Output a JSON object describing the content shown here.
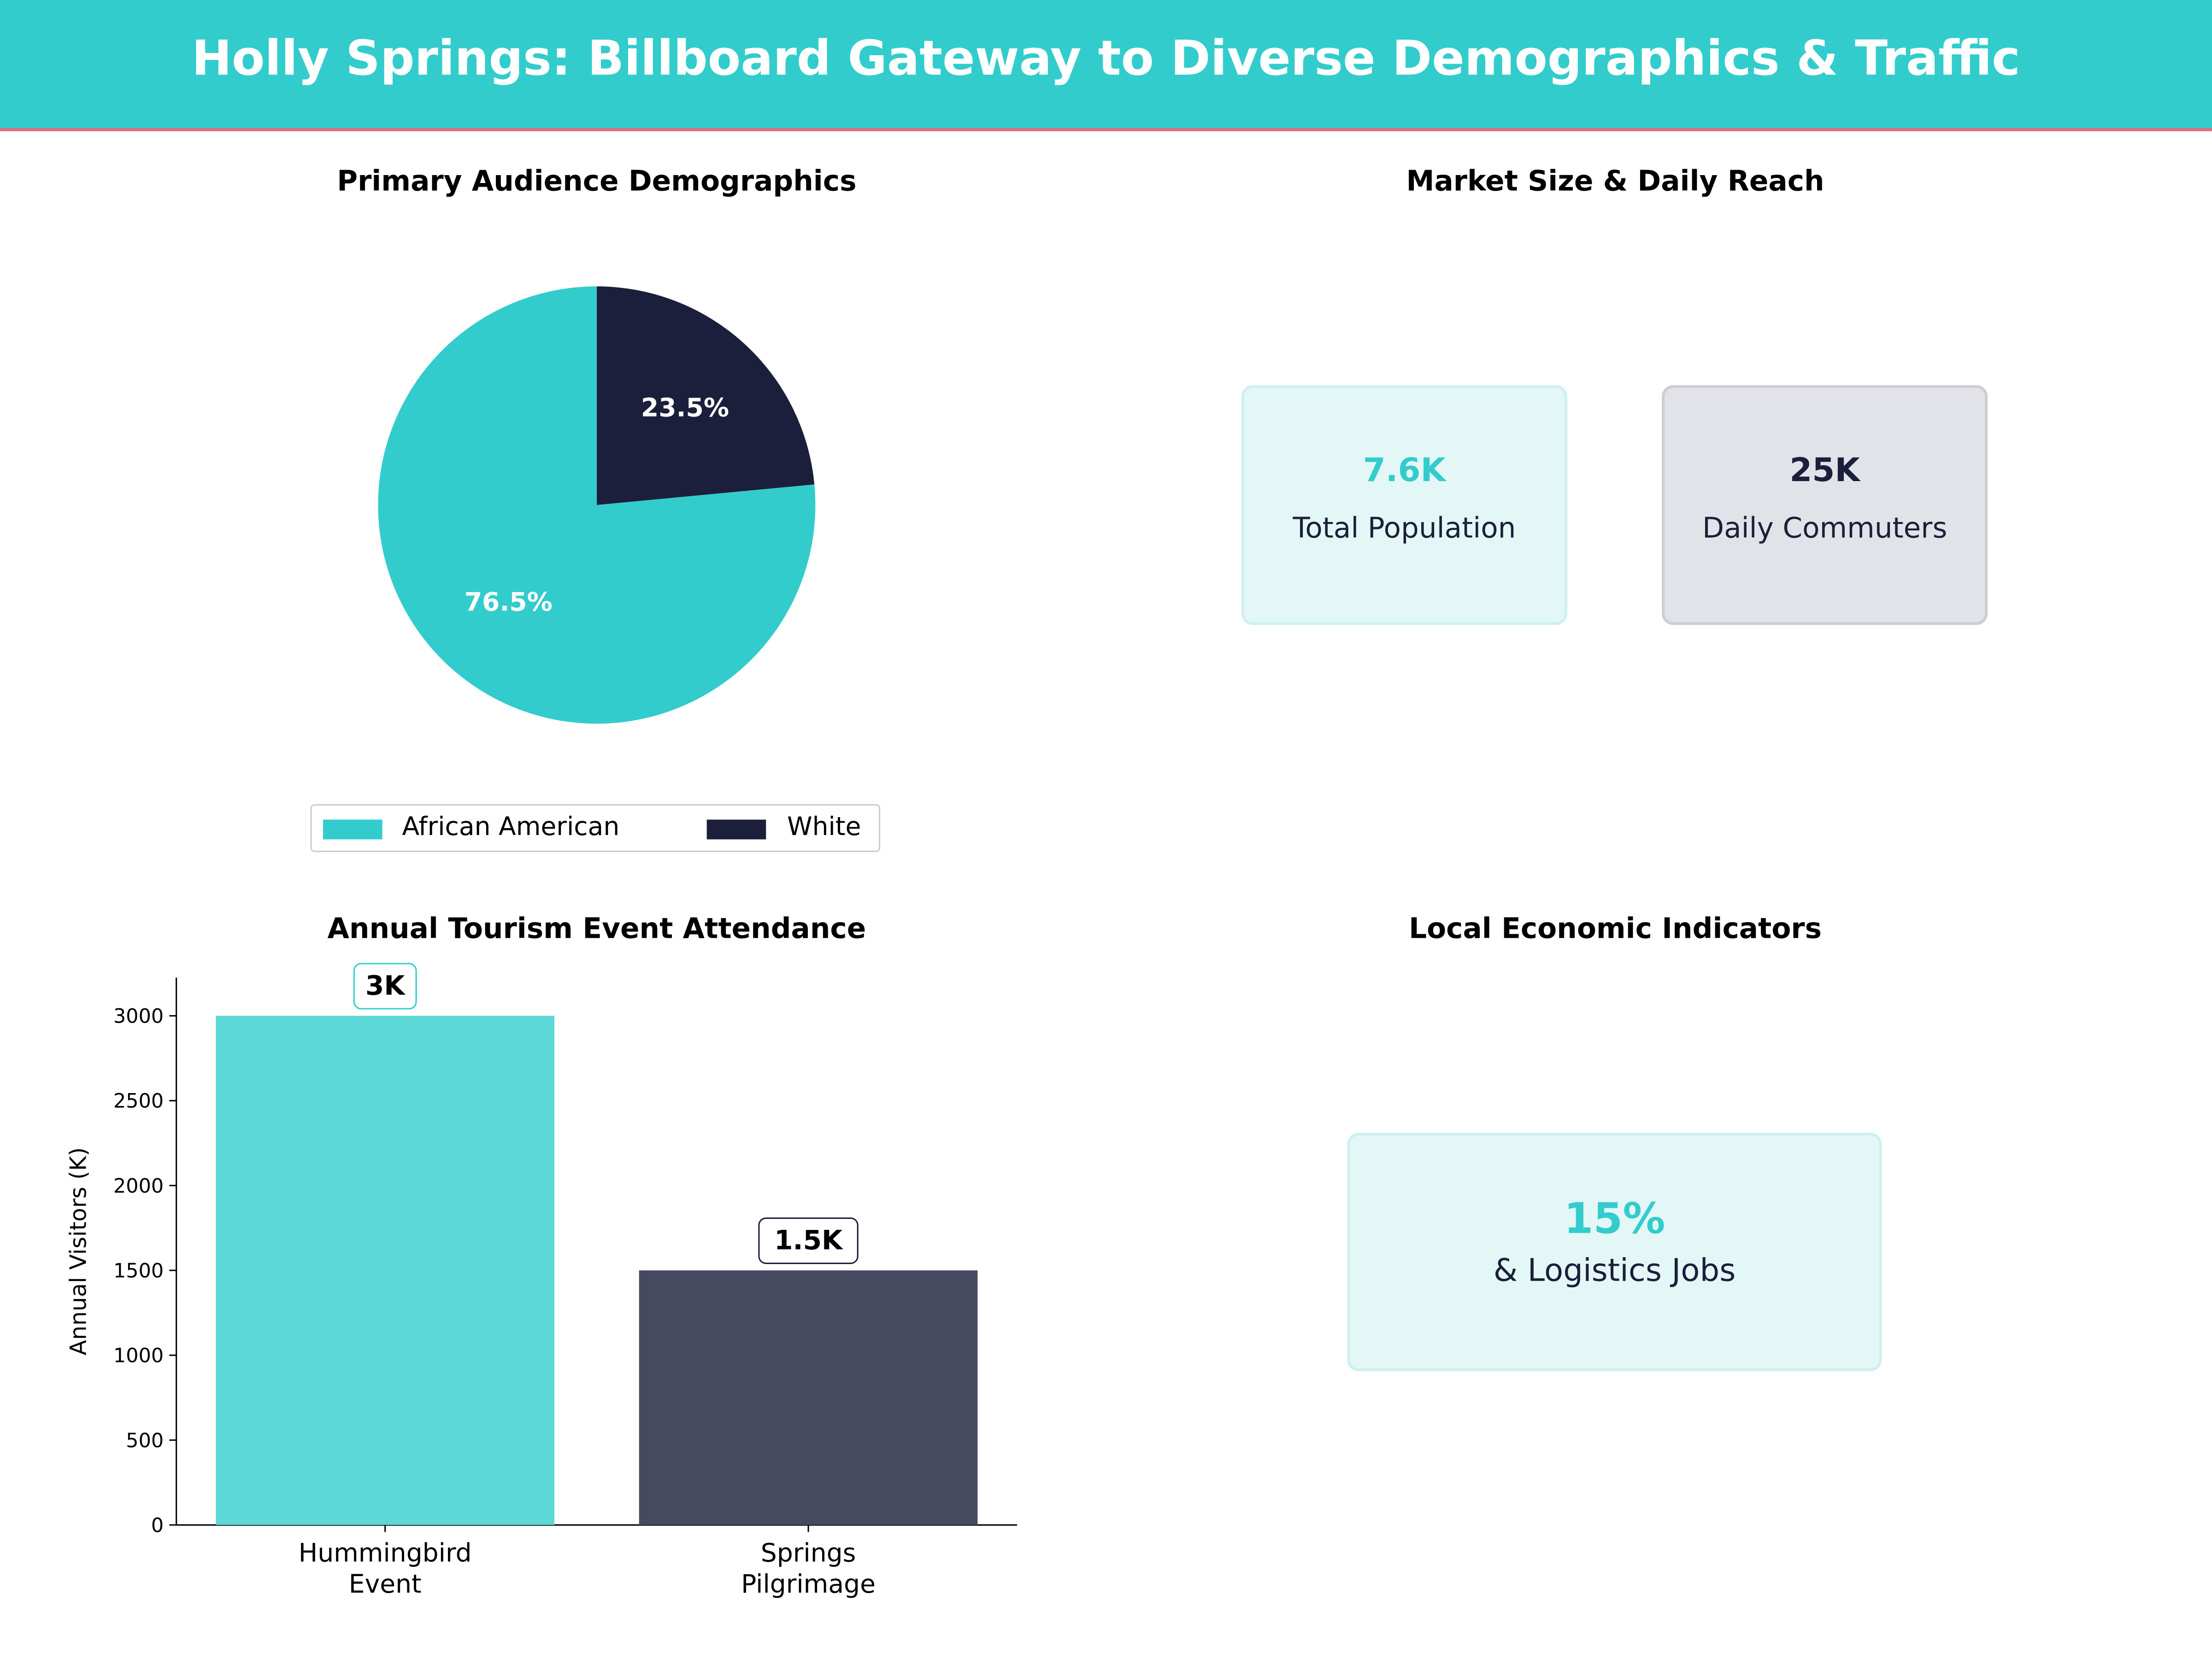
{
  "title": "Holly Springs: Billboard Gateway to Diverse Demographics & Traffic",
  "colors": {
    "accent": "#33CCCC",
    "dark": "#1B1F3B",
    "stripe": "#F06478",
    "bar1": "#5CD8D6",
    "bar2": "#454A60"
  },
  "market": {
    "title": "Market Size & Daily Reach",
    "cards": [
      {
        "value": "7.6K",
        "label": "Total Population"
      },
      {
        "value": "25K",
        "label": "Daily Commuters"
      }
    ]
  },
  "economic": {
    "title": "Local Economic Indicators",
    "card": {
      "value": "15%",
      "label": "& Logistics Jobs"
    }
  },
  "chart_data": [
    {
      "type": "pie",
      "title": "Primary Audience Demographics",
      "slices": [
        {
          "name": "White",
          "value": 23.5,
          "label": "23.5%",
          "color": "#1B1F3B"
        },
        {
          "name": "African American",
          "value": 76.5,
          "label": "76.5%",
          "color": "#33CCCC"
        }
      ],
      "legend": {
        "placement": "bottom",
        "entries": [
          "African American",
          "White"
        ]
      }
    },
    {
      "type": "bar",
      "title": "Annual Tourism Event Attendance",
      "categories": [
        [
          "Hummingbird",
          "Event"
        ],
        [
          "Springs",
          "Pilgrimage"
        ]
      ],
      "values": [
        3000,
        1500
      ],
      "data_labels": [
        "3K",
        "1.5K"
      ],
      "colors": [
        "#5CD8D6",
        "#454A60"
      ],
      "xlabel": "",
      "ylabel": "Annual Visitors (K)",
      "ylim": [
        0,
        3225
      ],
      "yticks": [
        0,
        500,
        1000,
        1500,
        2000,
        2500,
        3000
      ],
      "grid": false
    }
  ]
}
